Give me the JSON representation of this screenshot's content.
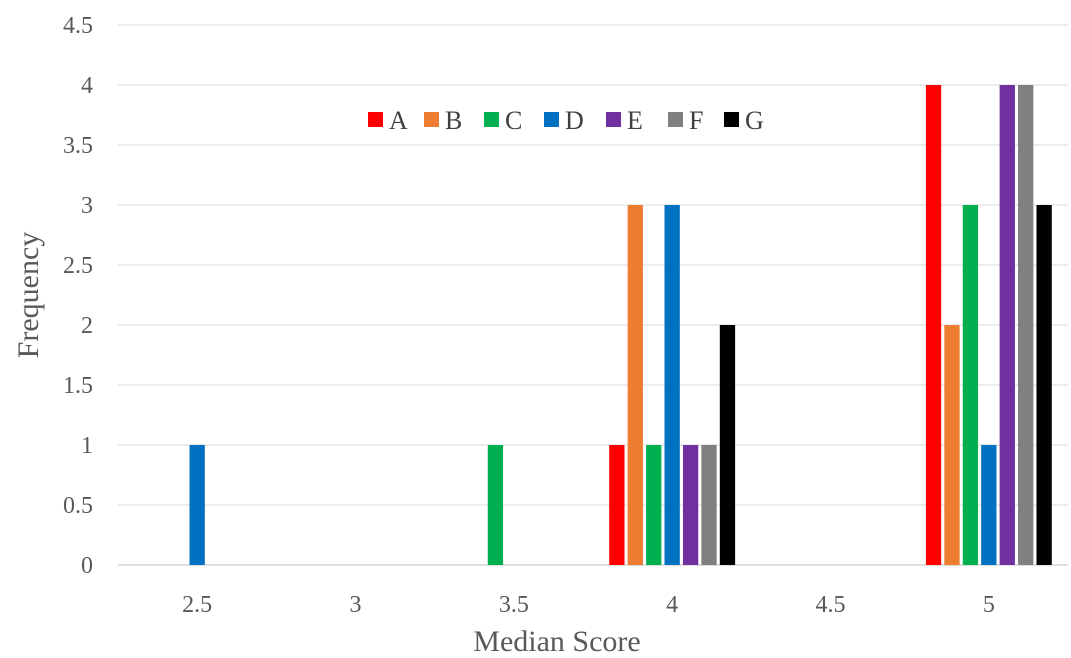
{
  "chart_data": {
    "type": "bar",
    "title": "",
    "xlabel": "Median Score",
    "ylabel": "Frequency",
    "categories": [
      "2.5",
      "3",
      "3.5",
      "4",
      "4.5",
      "5"
    ],
    "ylim": [
      0,
      4.5
    ],
    "yticks": [
      "0",
      "0.5",
      "1",
      "1.5",
      "2",
      "2.5",
      "3",
      "3.5",
      "4",
      "4.5"
    ],
    "grid": true,
    "legend_position": "top-center",
    "series": [
      {
        "name": "A",
        "color": "#ff0000",
        "values": [
          0,
          0,
          0,
          1,
          0,
          4
        ]
      },
      {
        "name": "B",
        "color": "#ed7d31",
        "values": [
          0,
          0,
          0,
          3,
          0,
          2
        ]
      },
      {
        "name": "C",
        "color": "#00b050",
        "values": [
          0,
          0,
          1,
          1,
          0,
          3
        ]
      },
      {
        "name": "D",
        "color": "#0070c0",
        "values": [
          1,
          0,
          0,
          3,
          0,
          1
        ]
      },
      {
        "name": "E",
        "color": "#7030a0",
        "values": [
          0,
          0,
          0,
          1,
          0,
          4
        ]
      },
      {
        "name": "F",
        "color": "#808080",
        "values": [
          0,
          0,
          0,
          1,
          0,
          4
        ]
      },
      {
        "name": "G",
        "color": "#000000",
        "values": [
          0,
          0,
          0,
          2,
          0,
          3
        ]
      }
    ]
  }
}
